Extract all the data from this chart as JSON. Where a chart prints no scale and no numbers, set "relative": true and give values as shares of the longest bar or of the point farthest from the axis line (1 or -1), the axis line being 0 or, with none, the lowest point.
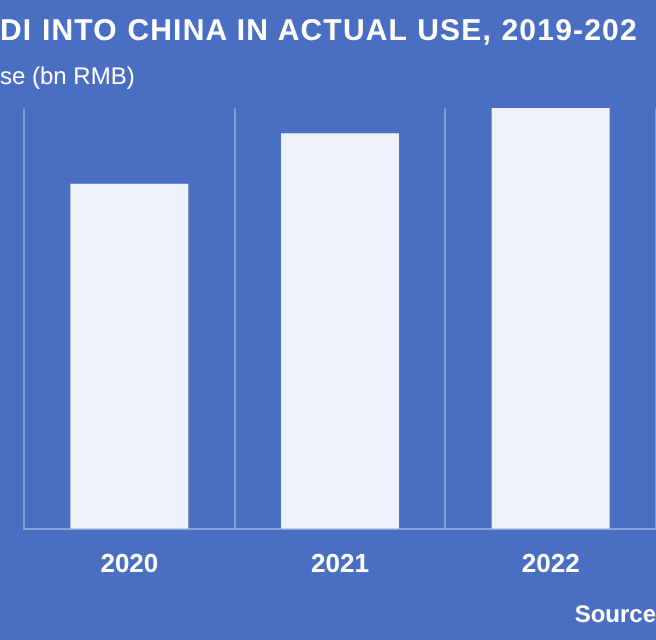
{
  "chart_data": {
    "type": "bar",
    "title": "DI INTO CHINA IN ACTUAL USE, 2019-202",
    "subtitle": "se (bn RMB)",
    "categories": [
      "2020",
      "2021",
      "2022"
    ],
    "values": [
      0.82,
      0.94,
      1
    ],
    "relative": true,
    "color": "#eef1fa",
    "grid": "x",
    "annotations": [
      "Source"
    ]
  }
}
